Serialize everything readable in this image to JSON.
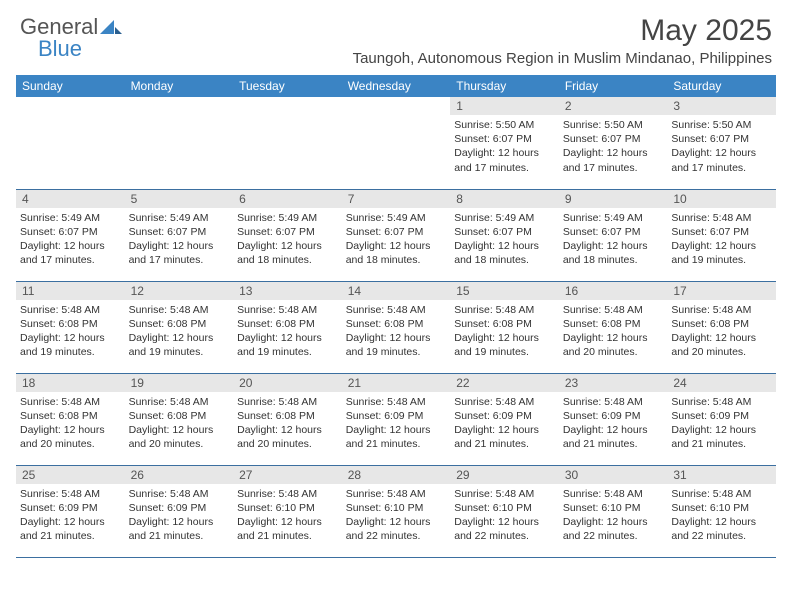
{
  "brand": {
    "part1": "General",
    "part2": "Blue"
  },
  "title": "May 2025",
  "subtitle": "Taungoh, Autonomous Region in Muslim Mindanao, Philippines",
  "colors": {
    "header_bg": "#3b84c4",
    "header_text": "#ffffff",
    "daynum_bg": "#e7e7e7",
    "border": "#3b6fa0",
    "text": "#333333"
  },
  "weekdays": [
    "Sunday",
    "Monday",
    "Tuesday",
    "Wednesday",
    "Thursday",
    "Friday",
    "Saturday"
  ],
  "weeks": [
    [
      {
        "day": "",
        "sunrise": "",
        "sunset": "",
        "daylight": "",
        "empty": true
      },
      {
        "day": "",
        "sunrise": "",
        "sunset": "",
        "daylight": "",
        "empty": true
      },
      {
        "day": "",
        "sunrise": "",
        "sunset": "",
        "daylight": "",
        "empty": true
      },
      {
        "day": "",
        "sunrise": "",
        "sunset": "",
        "daylight": "",
        "empty": true
      },
      {
        "day": "1",
        "sunrise": "Sunrise: 5:50 AM",
        "sunset": "Sunset: 6:07 PM",
        "daylight": "Daylight: 12 hours and 17 minutes."
      },
      {
        "day": "2",
        "sunrise": "Sunrise: 5:50 AM",
        "sunset": "Sunset: 6:07 PM",
        "daylight": "Daylight: 12 hours and 17 minutes."
      },
      {
        "day": "3",
        "sunrise": "Sunrise: 5:50 AM",
        "sunset": "Sunset: 6:07 PM",
        "daylight": "Daylight: 12 hours and 17 minutes."
      }
    ],
    [
      {
        "day": "4",
        "sunrise": "Sunrise: 5:49 AM",
        "sunset": "Sunset: 6:07 PM",
        "daylight": "Daylight: 12 hours and 17 minutes."
      },
      {
        "day": "5",
        "sunrise": "Sunrise: 5:49 AM",
        "sunset": "Sunset: 6:07 PM",
        "daylight": "Daylight: 12 hours and 17 minutes."
      },
      {
        "day": "6",
        "sunrise": "Sunrise: 5:49 AM",
        "sunset": "Sunset: 6:07 PM",
        "daylight": "Daylight: 12 hours and 18 minutes."
      },
      {
        "day": "7",
        "sunrise": "Sunrise: 5:49 AM",
        "sunset": "Sunset: 6:07 PM",
        "daylight": "Daylight: 12 hours and 18 minutes."
      },
      {
        "day": "8",
        "sunrise": "Sunrise: 5:49 AM",
        "sunset": "Sunset: 6:07 PM",
        "daylight": "Daylight: 12 hours and 18 minutes."
      },
      {
        "day": "9",
        "sunrise": "Sunrise: 5:49 AM",
        "sunset": "Sunset: 6:07 PM",
        "daylight": "Daylight: 12 hours and 18 minutes."
      },
      {
        "day": "10",
        "sunrise": "Sunrise: 5:48 AM",
        "sunset": "Sunset: 6:07 PM",
        "daylight": "Daylight: 12 hours and 19 minutes."
      }
    ],
    [
      {
        "day": "11",
        "sunrise": "Sunrise: 5:48 AM",
        "sunset": "Sunset: 6:08 PM",
        "daylight": "Daylight: 12 hours and 19 minutes."
      },
      {
        "day": "12",
        "sunrise": "Sunrise: 5:48 AM",
        "sunset": "Sunset: 6:08 PM",
        "daylight": "Daylight: 12 hours and 19 minutes."
      },
      {
        "day": "13",
        "sunrise": "Sunrise: 5:48 AM",
        "sunset": "Sunset: 6:08 PM",
        "daylight": "Daylight: 12 hours and 19 minutes."
      },
      {
        "day": "14",
        "sunrise": "Sunrise: 5:48 AM",
        "sunset": "Sunset: 6:08 PM",
        "daylight": "Daylight: 12 hours and 19 minutes."
      },
      {
        "day": "15",
        "sunrise": "Sunrise: 5:48 AM",
        "sunset": "Sunset: 6:08 PM",
        "daylight": "Daylight: 12 hours and 19 minutes."
      },
      {
        "day": "16",
        "sunrise": "Sunrise: 5:48 AM",
        "sunset": "Sunset: 6:08 PM",
        "daylight": "Daylight: 12 hours and 20 minutes."
      },
      {
        "day": "17",
        "sunrise": "Sunrise: 5:48 AM",
        "sunset": "Sunset: 6:08 PM",
        "daylight": "Daylight: 12 hours and 20 minutes."
      }
    ],
    [
      {
        "day": "18",
        "sunrise": "Sunrise: 5:48 AM",
        "sunset": "Sunset: 6:08 PM",
        "daylight": "Daylight: 12 hours and 20 minutes."
      },
      {
        "day": "19",
        "sunrise": "Sunrise: 5:48 AM",
        "sunset": "Sunset: 6:08 PM",
        "daylight": "Daylight: 12 hours and 20 minutes."
      },
      {
        "day": "20",
        "sunrise": "Sunrise: 5:48 AM",
        "sunset": "Sunset: 6:08 PM",
        "daylight": "Daylight: 12 hours and 20 minutes."
      },
      {
        "day": "21",
        "sunrise": "Sunrise: 5:48 AM",
        "sunset": "Sunset: 6:09 PM",
        "daylight": "Daylight: 12 hours and 21 minutes."
      },
      {
        "day": "22",
        "sunrise": "Sunrise: 5:48 AM",
        "sunset": "Sunset: 6:09 PM",
        "daylight": "Daylight: 12 hours and 21 minutes."
      },
      {
        "day": "23",
        "sunrise": "Sunrise: 5:48 AM",
        "sunset": "Sunset: 6:09 PM",
        "daylight": "Daylight: 12 hours and 21 minutes."
      },
      {
        "day": "24",
        "sunrise": "Sunrise: 5:48 AM",
        "sunset": "Sunset: 6:09 PM",
        "daylight": "Daylight: 12 hours and 21 minutes."
      }
    ],
    [
      {
        "day": "25",
        "sunrise": "Sunrise: 5:48 AM",
        "sunset": "Sunset: 6:09 PM",
        "daylight": "Daylight: 12 hours and 21 minutes."
      },
      {
        "day": "26",
        "sunrise": "Sunrise: 5:48 AM",
        "sunset": "Sunset: 6:09 PM",
        "daylight": "Daylight: 12 hours and 21 minutes."
      },
      {
        "day": "27",
        "sunrise": "Sunrise: 5:48 AM",
        "sunset": "Sunset: 6:10 PM",
        "daylight": "Daylight: 12 hours and 21 minutes."
      },
      {
        "day": "28",
        "sunrise": "Sunrise: 5:48 AM",
        "sunset": "Sunset: 6:10 PM",
        "daylight": "Daylight: 12 hours and 22 minutes."
      },
      {
        "day": "29",
        "sunrise": "Sunrise: 5:48 AM",
        "sunset": "Sunset: 6:10 PM",
        "daylight": "Daylight: 12 hours and 22 minutes."
      },
      {
        "day": "30",
        "sunrise": "Sunrise: 5:48 AM",
        "sunset": "Sunset: 6:10 PM",
        "daylight": "Daylight: 12 hours and 22 minutes."
      },
      {
        "day": "31",
        "sunrise": "Sunrise: 5:48 AM",
        "sunset": "Sunset: 6:10 PM",
        "daylight": "Daylight: 12 hours and 22 minutes."
      }
    ]
  ]
}
